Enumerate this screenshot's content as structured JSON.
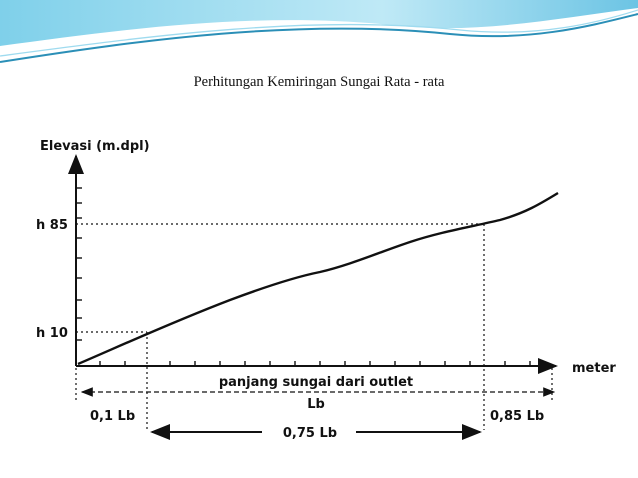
{
  "slide": {
    "title": "Perhitungan Kemiringan Sungai Rata - rata"
  },
  "colors": {
    "accent_dark": "#2b8fb7",
    "accent_light": "#9fdbef",
    "ink": "#111111"
  },
  "diagram": {
    "y_axis_label": "Elevasi (m.dpl)",
    "x_axis_label": "meter",
    "x_caption": "panjang sungai dari outlet",
    "h85_label": "h 85",
    "h10_label": "h 10",
    "lb_label": "Lb",
    "lb_01_label": "0,1 Lb",
    "lb_085_label": "0,85 Lb",
    "lb_075_label": "0,75 Lb"
  }
}
